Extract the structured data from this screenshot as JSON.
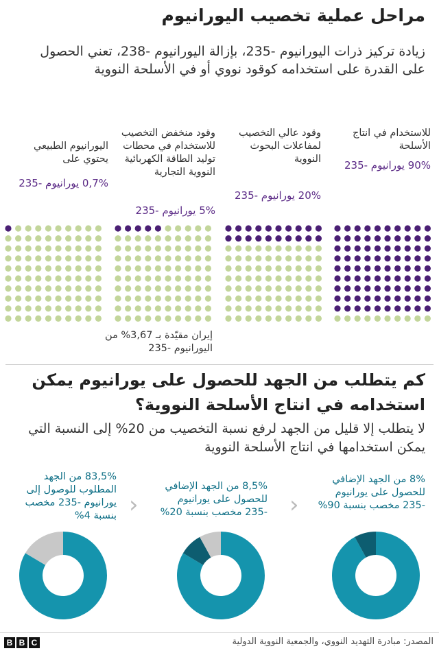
{
  "title": "مراحل عملية تخصيب اليورانيوم",
  "subtitle": "زيادة تركيز ذرات اليورانيوم -235، بإزالة اليورانيوم -238، تعني الحصول على القدرة على استخدامه كوقود نووي أو في الأسلحة النووية",
  "colors": {
    "u235": "#4a1f74",
    "other": "#c3d69b",
    "donut_main": "#1594ad",
    "donut_dark": "#0d5d70",
    "donut_grey": "#c8c8c8",
    "pct_text": "#5b2a86"
  },
  "columns": [
    {
      "desc": "اليورانيوم الطبيعي يحتوي على",
      "pct": "0,7% يورانيوم -235"
    },
    {
      "desc": "وقود منخفض التخصيب للاستخدام في محطات توليد الطاقة الكهربائية النووية التجارية",
      "pct": "5% يورانيوم -235"
    },
    {
      "desc": "وقود عالي التخصيب لمفاعلات البحوث النووية",
      "pct": "20% يورانيوم -235"
    },
    {
      "desc": "للاستخدام في انتاج الأسلحة",
      "pct": "90% يورانيوم -235"
    }
  ],
  "iran_note": "إيران مقيّدة بـ 3,67% من اليورانيوم -235",
  "question_title": "كم يتطلب من الجهد للحصول على يورانيوم يمكن استخدامه في انتاج الأسلحة النووية؟",
  "question_sub": "لا يتطلب إلا قليل من الجهد لرفع نسبة التخصيب من 20% إلى النسبة التي يمكن استخدامها في انتاج الأسلحة النووية",
  "donuts": [
    {
      "desc": "83,5% من الجهد المطلوب للوصول إلى يورانيوم -235 مخصب بنسبة 4%"
    },
    {
      "desc": "8,5% من الجهد الإضافي للحصول على يورانيوم -235 مخصب بنسبة 20%"
    },
    {
      "desc": "8% من الجهد الإضافي للحصول على يورانيوم -235 مخصب بنسبة 90%"
    }
  ],
  "source": "المصدر: مبادرة التهديد النووي، والجمعية النووية الدولية",
  "brand": [
    "B",
    "B",
    "C"
  ],
  "chart_data": [
    {
      "type": "waffle",
      "categories": [
        "اليورانيوم الطبيعي",
        "وقود منخفض التخصيب",
        "وقود عالي التخصيب",
        "للاستخدام في انتاج الأسلحة"
      ],
      "values": [
        0.7,
        5,
        20,
        90
      ],
      "grid": [
        10,
        10
      ]
    },
    {
      "type": "pie",
      "categories": [
        "4%",
        "20%",
        "90%"
      ],
      "series": [
        {
          "values": [
            83.5,
            0,
            16.5
          ]
        },
        {
          "values": [
            83.5,
            8.5,
            8
          ]
        },
        {
          "values": [
            92,
            8,
            0
          ]
        }
      ]
    }
  ]
}
